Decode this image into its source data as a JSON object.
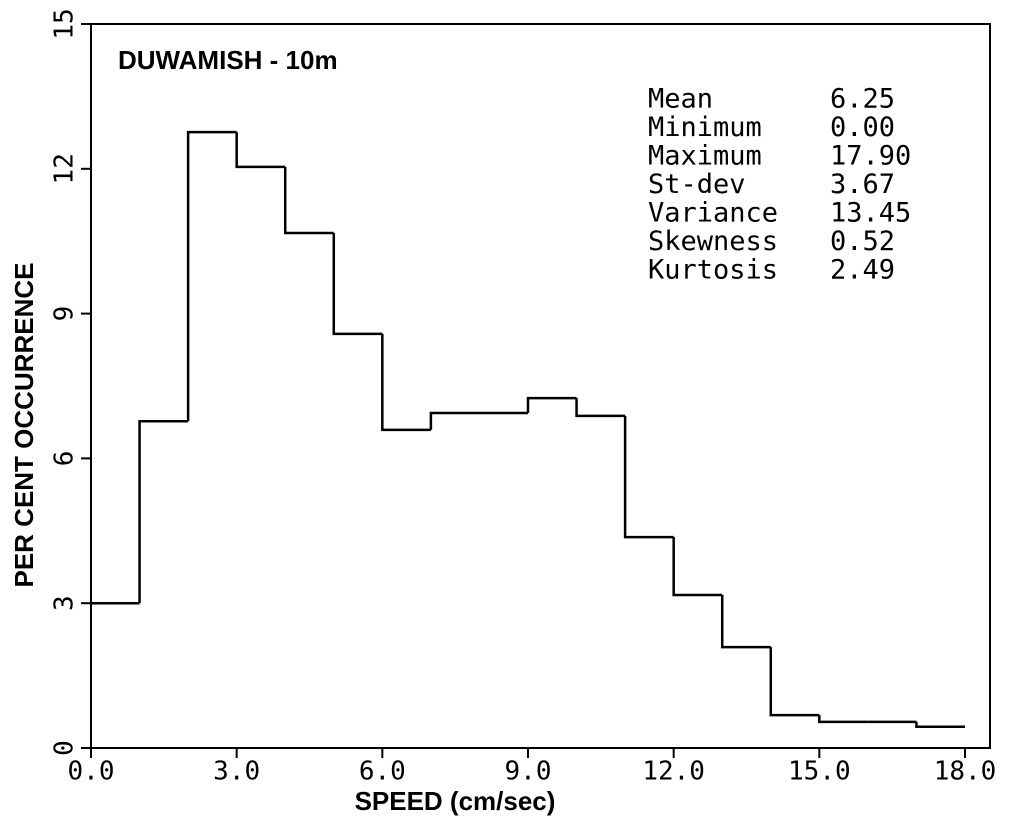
{
  "chart_data": {
    "type": "histogram",
    "title": "DUWAMISH - 10m",
    "x_label": "SPEED (cm/sec)",
    "y_label": "PER CENT OCCURRENCE",
    "bins": [
      0,
      1,
      2,
      3,
      4,
      5,
      6,
      7,
      8,
      9,
      10,
      11,
      12,
      13,
      14,
      15,
      16,
      17,
      18
    ],
    "values": [
      3.0,
      6.77,
      12.76,
      12.04,
      10.67,
      8.58,
      6.59,
      6.94,
      6.94,
      7.25,
      6.88,
      4.37,
      3.17,
      2.09,
      0.68,
      0.54,
      0.54,
      0.44
    ],
    "color": "#000000",
    "xlim": [
      0,
      18
    ],
    "xticks": [
      {
        "value": 0,
        "label": "0.0"
      },
      {
        "value": 3,
        "label": "3.0"
      },
      {
        "value": 6,
        "label": "6.0"
      },
      {
        "value": 9,
        "label": "9.0"
      },
      {
        "value": 12,
        "label": "12.0"
      },
      {
        "value": 15,
        "label": "15.0"
      },
      {
        "value": 18,
        "label": "18.0"
      }
    ],
    "ylim": [
      0,
      15
    ],
    "yticks": [
      0,
      3,
      6,
      9,
      12,
      15
    ],
    "stats": [
      {
        "name": "Mean",
        "value": "6.25"
      },
      {
        "name": "Minimum",
        "value": "0.00"
      },
      {
        "name": "Maximum",
        "value": "17.90"
      },
      {
        "name": "St-dev",
        "value": "3.67"
      },
      {
        "name": "Variance",
        "value": "13.45"
      },
      {
        "name": "Skewness",
        "value": "0.52"
      },
      {
        "name": "Kurtosis",
        "value": "2.49"
      }
    ]
  }
}
